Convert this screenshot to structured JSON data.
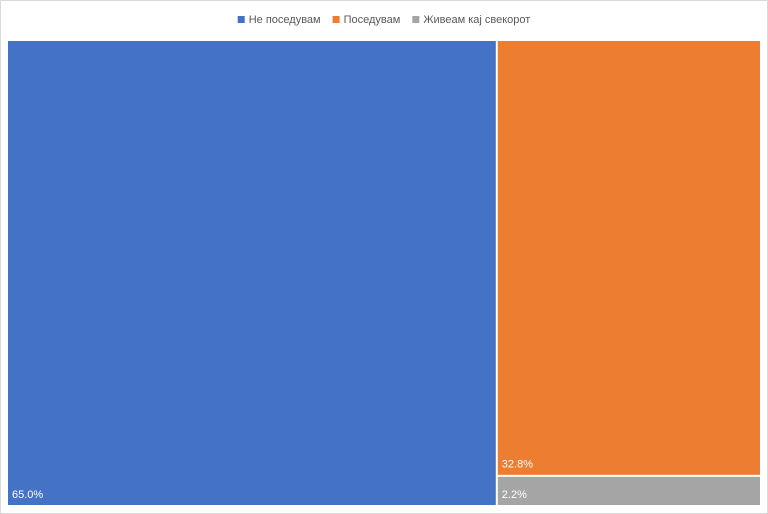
{
  "chart_data": {
    "type": "treemap",
    "categories": [
      "Не поседувам",
      "Поседувам",
      "Живеам кај свекорот"
    ],
    "values": [
      65.0,
      32.8,
      2.2
    ],
    "value_labels": [
      "65.0%",
      "32.8%",
      "2.2%"
    ],
    "colors": [
      "#4472c4",
      "#ed7d31",
      "#a5a5a5"
    ],
    "legend": "top"
  }
}
